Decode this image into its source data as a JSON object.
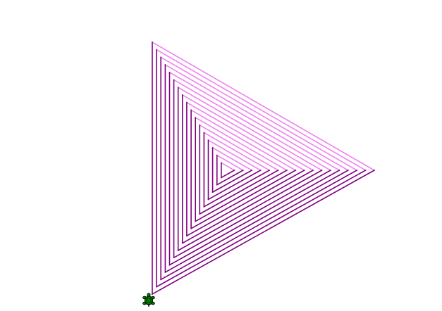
{
  "canvas": {
    "background": "#ffffff"
  },
  "drawing": {
    "shape": "nested-triangle-spiral",
    "colors": {
      "left_edge": "#800080",
      "bottom_edge": "#800080",
      "top_edge": "#ee82ee"
    }
  },
  "turtle": {
    "icon": "turtle-icon",
    "color": "#008000"
  }
}
